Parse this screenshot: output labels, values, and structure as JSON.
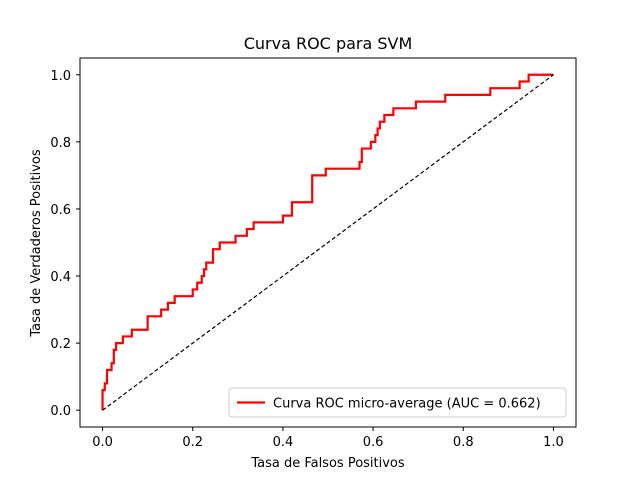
{
  "chart_data": {
    "type": "line",
    "title": "Curva ROC para SVM",
    "xlabel": "Tasa de Falsos Positivos",
    "ylabel": "Tasa de Verdaderos Positivos",
    "xlim": [
      -0.05,
      1.05
    ],
    "ylim": [
      -0.05,
      1.05
    ],
    "xticks": [
      "0.0",
      "0.2",
      "0.4",
      "0.6",
      "0.8",
      "1.0"
    ],
    "yticks": [
      "0.0",
      "0.2",
      "0.4",
      "0.6",
      "0.8",
      "1.0"
    ],
    "grid": false,
    "legend_position": "lower-right",
    "series": [
      {
        "name": "Curva ROC micro-average (AUC = 0.662)",
        "color": "#ff0000",
        "style": "solid",
        "x": [
          0.0,
          0.0,
          0.005,
          0.005,
          0.01,
          0.01,
          0.02,
          0.02,
          0.025,
          0.025,
          0.03,
          0.03,
          0.045,
          0.045,
          0.065,
          0.065,
          0.1,
          0.1,
          0.13,
          0.13,
          0.145,
          0.145,
          0.16,
          0.16,
          0.2,
          0.2,
          0.21,
          0.21,
          0.22,
          0.22,
          0.225,
          0.225,
          0.23,
          0.23,
          0.245,
          0.245,
          0.26,
          0.26,
          0.295,
          0.295,
          0.32,
          0.32,
          0.335,
          0.335,
          0.4,
          0.4,
          0.42,
          0.42,
          0.465,
          0.465,
          0.495,
          0.495,
          0.57,
          0.57,
          0.575,
          0.575,
          0.595,
          0.595,
          0.605,
          0.605,
          0.61,
          0.61,
          0.615,
          0.615,
          0.625,
          0.625,
          0.645,
          0.645,
          0.695,
          0.695,
          0.76,
          0.76,
          0.86,
          0.86,
          0.925,
          0.925,
          0.945,
          0.945,
          1.0
        ],
        "y": [
          0.0,
          0.06,
          0.06,
          0.08,
          0.08,
          0.12,
          0.12,
          0.14,
          0.14,
          0.18,
          0.18,
          0.2,
          0.2,
          0.22,
          0.22,
          0.24,
          0.24,
          0.28,
          0.28,
          0.3,
          0.3,
          0.32,
          0.32,
          0.34,
          0.34,
          0.36,
          0.36,
          0.38,
          0.38,
          0.4,
          0.4,
          0.42,
          0.42,
          0.44,
          0.44,
          0.48,
          0.48,
          0.5,
          0.5,
          0.52,
          0.52,
          0.54,
          0.54,
          0.56,
          0.56,
          0.58,
          0.58,
          0.62,
          0.62,
          0.7,
          0.7,
          0.72,
          0.72,
          0.74,
          0.74,
          0.78,
          0.78,
          0.8,
          0.8,
          0.82,
          0.82,
          0.84,
          0.84,
          0.86,
          0.86,
          0.88,
          0.88,
          0.9,
          0.9,
          0.92,
          0.92,
          0.94,
          0.94,
          0.96,
          0.96,
          0.98,
          0.98,
          1.0,
          1.0
        ]
      },
      {
        "name": "",
        "color": "#000000",
        "style": "dashed",
        "x": [
          0.0,
          1.0
        ],
        "y": [
          0.0,
          1.0
        ]
      }
    ]
  }
}
